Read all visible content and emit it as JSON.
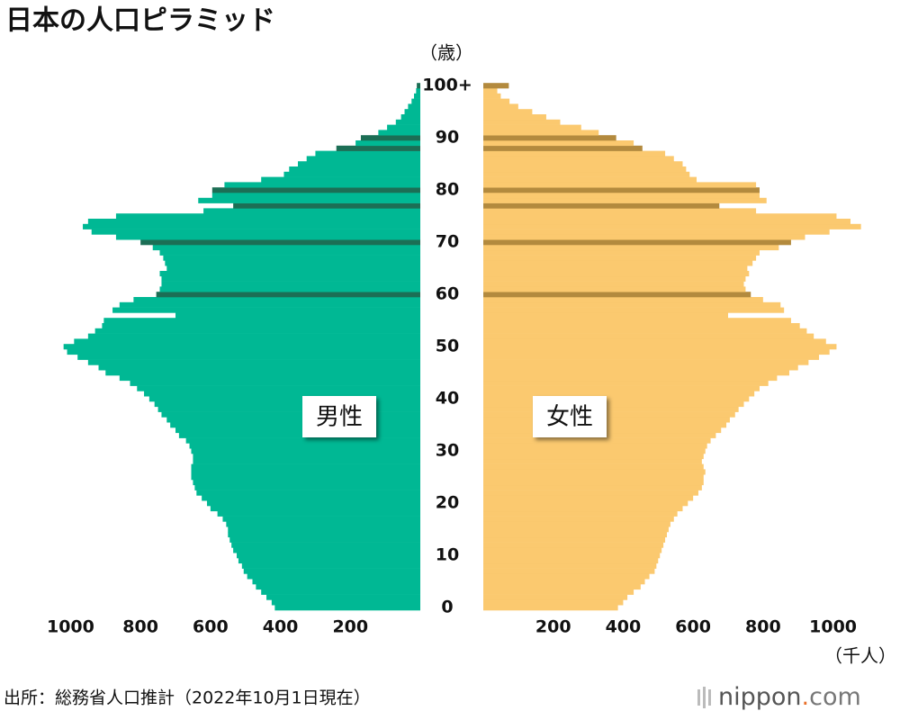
{
  "chart_data": {
    "type": "pyramid",
    "title": "日本の人口ピラミッド",
    "y_unit": "（歳）",
    "x_unit": "（千人）",
    "categories": [
      "0",
      null,
      null,
      null,
      null,
      null,
      null,
      null,
      null,
      null,
      "10",
      null,
      null,
      null,
      null,
      null,
      null,
      null,
      null,
      null,
      "20",
      null,
      null,
      null,
      null,
      null,
      null,
      null,
      null,
      null,
      "30",
      null,
      null,
      null,
      null,
      null,
      null,
      null,
      null,
      null,
      "40",
      null,
      null,
      null,
      null,
      null,
      null,
      null,
      null,
      null,
      "50",
      null,
      null,
      null,
      null,
      null,
      null,
      null,
      null,
      null,
      "60",
      null,
      null,
      null,
      null,
      null,
      null,
      null,
      null,
      null,
      "70",
      null,
      null,
      null,
      null,
      null,
      null,
      null,
      null,
      null,
      "80",
      null,
      null,
      null,
      null,
      null,
      null,
      null,
      null,
      null,
      "90",
      null,
      null,
      null,
      null,
      null,
      null,
      null,
      null,
      null,
      "100+"
    ],
    "series": [
      {
        "name": "男性",
        "side": "left",
        "color": "#00b894",
        "highlight_color": "#1c6e55",
        "highlight": [
          60,
          70,
          77,
          80,
          88,
          90,
          100
        ],
        "values": [
          416,
          425,
          440,
          455,
          470,
          480,
          495,
          505,
          510,
          520,
          525,
          535,
          540,
          545,
          550,
          550,
          555,
          565,
          580,
          600,
          610,
          625,
          640,
          645,
          650,
          655,
          655,
          655,
          650,
          650,
          655,
          660,
          670,
          690,
          700,
          715,
          725,
          740,
          750,
          760,
          775,
          790,
          810,
          830,
          860,
          900,
          920,
          950,
          980,
          1010,
          1020,
          990,
          950,
          930,
          910,
          905,
          700,
          880,
          860,
          820,
          755,
          745,
          740,
          740,
          745,
          725,
          730,
          735,
          745,
          765,
          800,
          870,
          940,
          965,
          950,
          870,
          620,
          535,
          635,
          595,
          595,
          560,
          455,
          390,
          375,
          350,
          325,
          300,
          240,
          185,
          170,
          120,
          95,
          70,
          55,
          45,
          35,
          25,
          18,
          12,
          10
        ]
      },
      {
        "name": "女性",
        "side": "right",
        "color": "#fbc96f",
        "highlight_color": "#b38a3e",
        "highlight": [
          60,
          70,
          77,
          80,
          88,
          90,
          100
        ],
        "values": [
          385,
          400,
          412,
          430,
          450,
          462,
          475,
          490,
          495,
          500,
          505,
          510,
          515,
          520,
          525,
          530,
          535,
          545,
          555,
          570,
          585,
          600,
          615,
          625,
          630,
          630,
          635,
          630,
          625,
          630,
          635,
          640,
          650,
          665,
          680,
          695,
          705,
          720,
          730,
          745,
          760,
          775,
          790,
          815,
          840,
          875,
          900,
          930,
          960,
          990,
          1010,
          980,
          945,
          925,
          905,
          880,
          700,
          860,
          850,
          800,
          765,
          750,
          745,
          750,
          760,
          755,
          770,
          780,
          790,
          845,
          880,
          920,
          990,
          1080,
          1050,
          1010,
          780,
          675,
          810,
          790,
          790,
          780,
          610,
          590,
          580,
          570,
          545,
          520,
          455,
          430,
          380,
          330,
          280,
          220,
          180,
          140,
          100,
          75,
          50,
          40,
          73
        ]
      }
    ],
    "xlim": [
      0,
      1050
    ],
    "xticks": [
      200,
      400,
      600,
      800,
      1000
    ]
  },
  "source": "出所：総務省人口推計（2022年10月1日現在）",
  "logo": {
    "name": "nippon",
    "dot": ".",
    "tld": "com"
  }
}
